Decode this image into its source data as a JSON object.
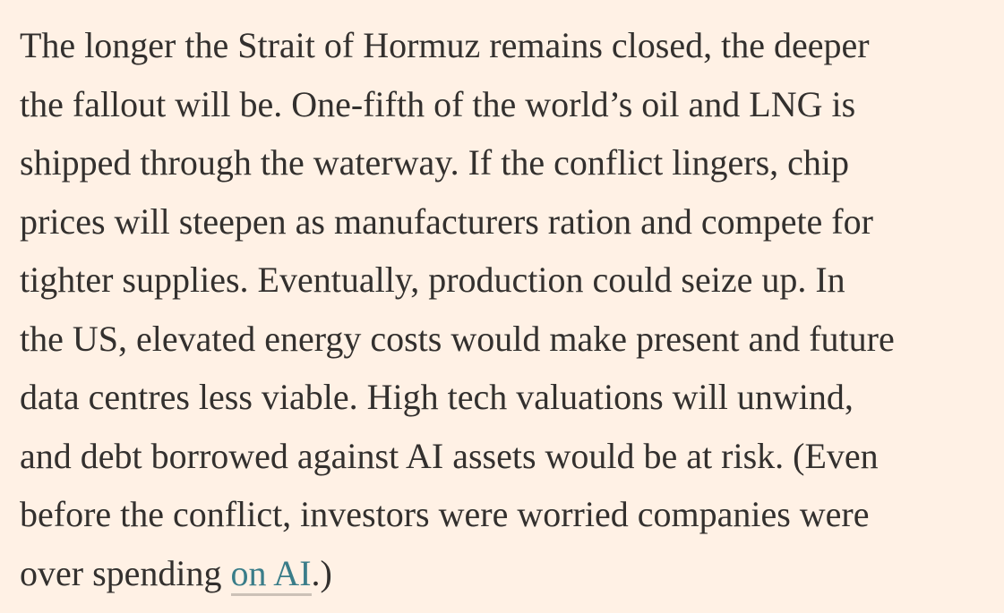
{
  "paragraph": {
    "lines": [
      "The longer the Strait of Hormuz remains closed, the deeper",
      "the fallout will be. One-fifth of the world’s oil and LNG is",
      "shipped through the waterway. If the conflict lingers, chip",
      "prices will steepen as manufacturers ration and compete for",
      "tighter supplies. Eventually, production could seize up. In",
      "the US, elevated energy costs would make present and future",
      "data centres less viable. High tech valuations will unwind,",
      "and debt borrowed against AI assets would be at risk. (Even",
      "before the conflict, investors were worried companies were"
    ],
    "last_line_before_link": "over spending ",
    "link_text": "on AI",
    "last_line_after_link": ".)"
  },
  "colors": {
    "background": "#FFF1E5",
    "text": "#33302E",
    "link": "#3A7D89"
  }
}
